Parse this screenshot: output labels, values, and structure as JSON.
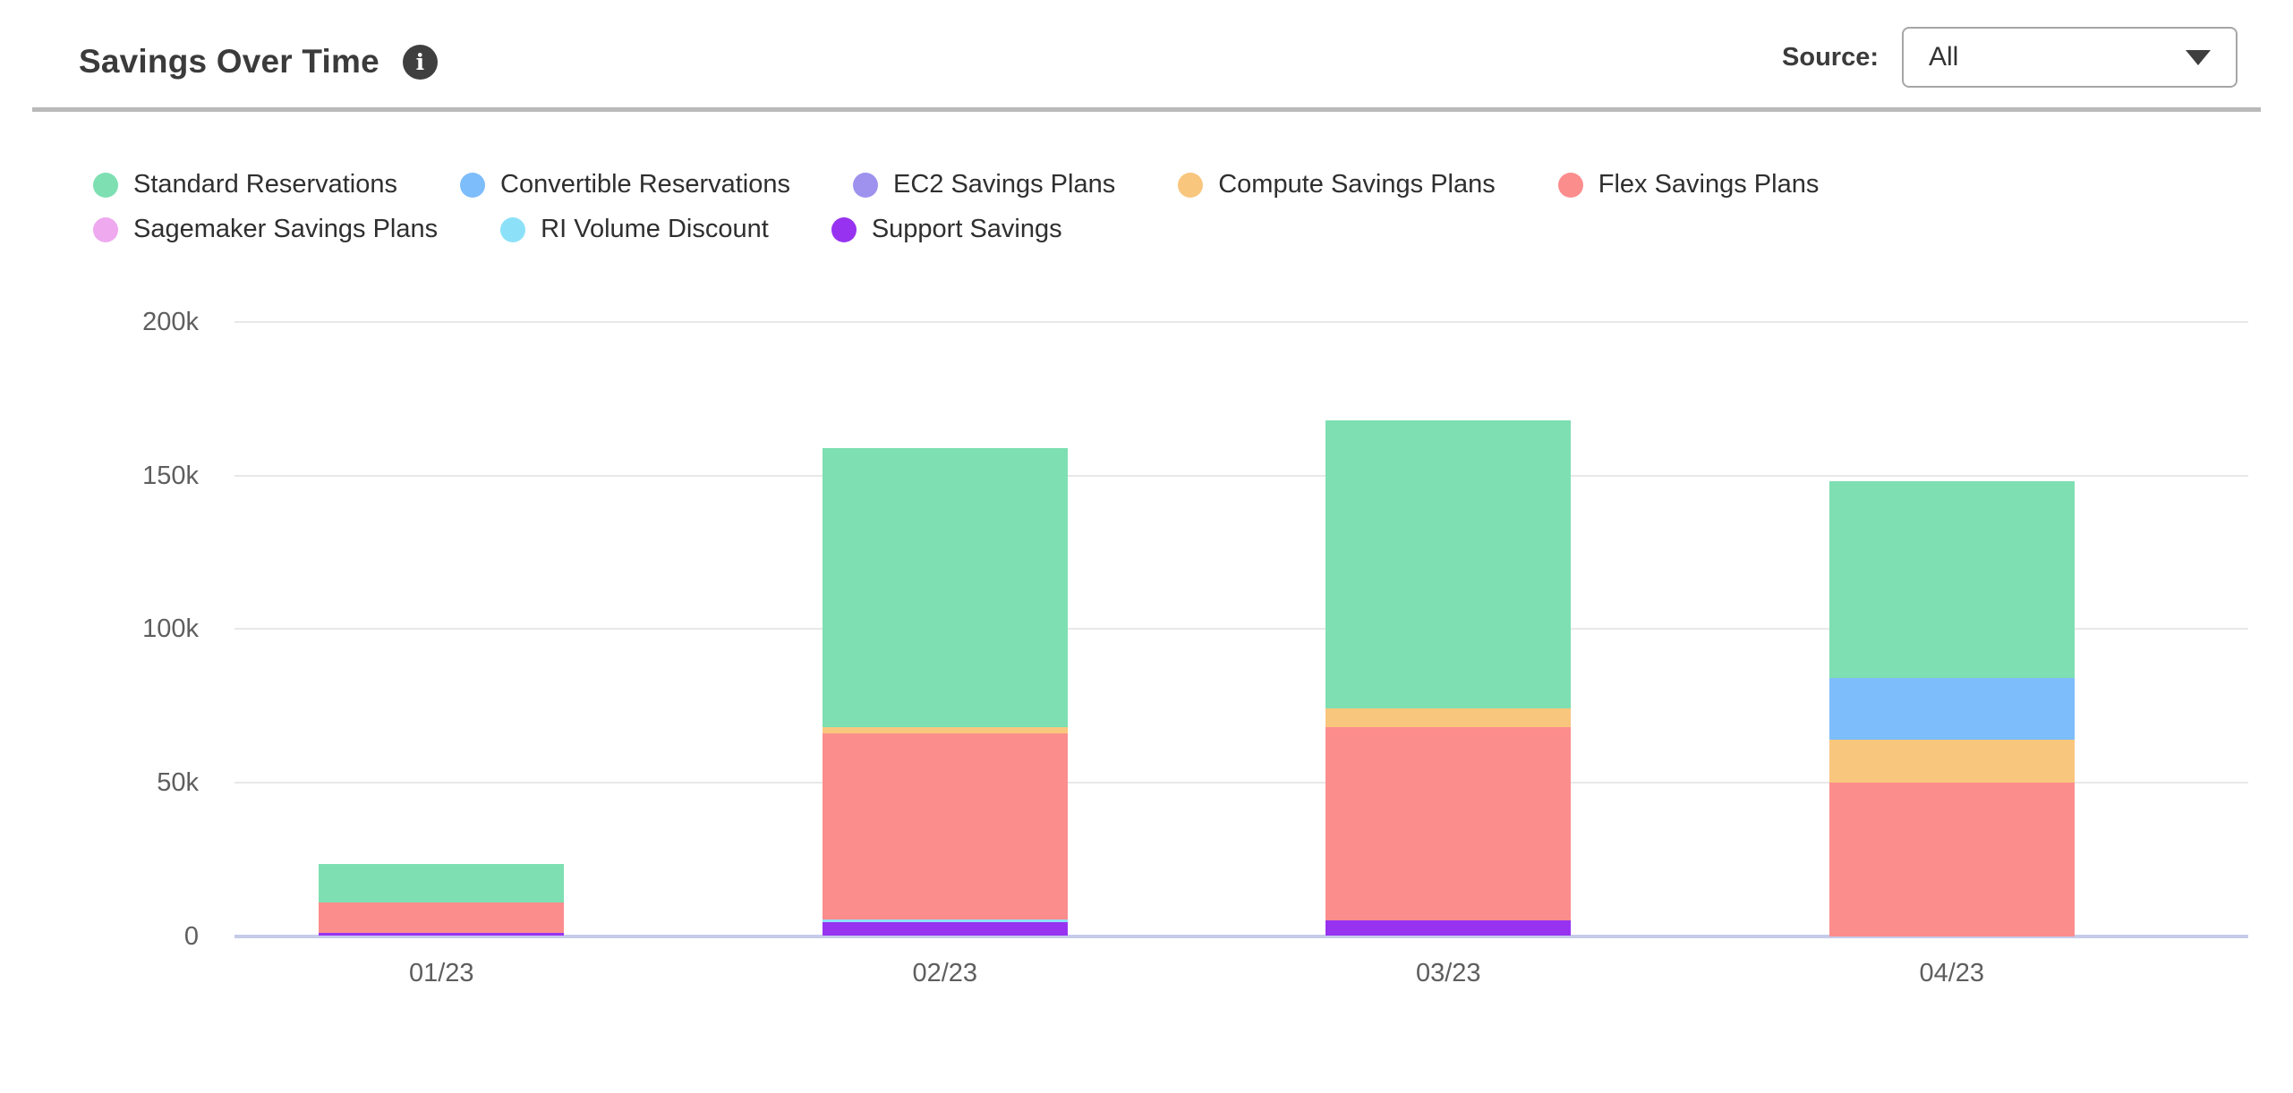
{
  "header": {
    "title": "Savings Over Time",
    "info_icon": "i",
    "source_label": "Source:",
    "source_value": "All"
  },
  "legend": {
    "row_break_after": 5
  },
  "chart_data": {
    "type": "bar",
    "stacked": true,
    "title": "Savings Over Time",
    "categories": [
      "01/23",
      "02/23",
      "03/23",
      "04/23"
    ],
    "series": [
      {
        "name": "Standard Reservations",
        "color": "#7ddfb2",
        "values_k": [
          12.5,
          91,
          94,
          64
        ]
      },
      {
        "name": "Convertible Reservations",
        "color": "#7ebdfb",
        "values_k": [
          0,
          0,
          0,
          20
        ]
      },
      {
        "name": "EC2 Savings Plans",
        "color": "#9e92ee",
        "values_k": [
          0,
          0,
          0,
          0
        ]
      },
      {
        "name": "Compute Savings Plans",
        "color": "#f9c67e",
        "values_k": [
          0,
          2,
          6,
          14
        ]
      },
      {
        "name": "Flex Savings Plans",
        "color": "#fc8d8d",
        "values_k": [
          10,
          60.5,
          63,
          50
        ]
      },
      {
        "name": "Sagemaker Savings Plans",
        "color": "#efa9ef",
        "values_k": [
          0,
          0,
          0,
          0
        ]
      },
      {
        "name": "RI Volume Discount",
        "color": "#8ce1f8",
        "values_k": [
          0,
          1,
          0,
          0
        ]
      },
      {
        "name": "Support Savings",
        "color": "#9733f0",
        "values_k": [
          1,
          4.5,
          5,
          0
        ]
      }
    ],
    "stack_order_bottom_to_top": [
      "Support Savings",
      "RI Volume Discount",
      "Sagemaker Savings Plans",
      "Flex Savings Plans",
      "Compute Savings Plans",
      "EC2 Savings Plans",
      "Convertible Reservations",
      "Standard Reservations"
    ],
    "totals_k": [
      23.5,
      158,
      168,
      148
    ],
    "y_ticks": [
      "0",
      "50k",
      "100k",
      "150k",
      "200k"
    ],
    "ylim_k": [
      0,
      200
    ],
    "grid": true,
    "legend_position": "top"
  }
}
